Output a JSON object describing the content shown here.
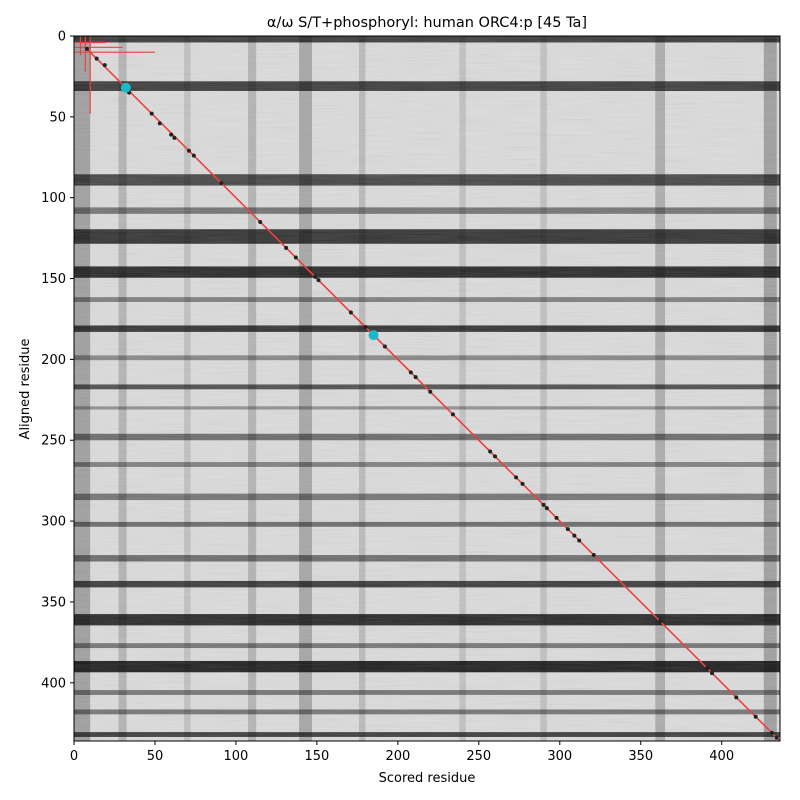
{
  "chart_data": {
    "type": "heatmap",
    "title": "α/ω S/T+phosphoryl: human ORC4:p [45 Ta]",
    "xlabel": "Scored residue",
    "ylabel": "Aligned residue",
    "xlim": [
      0,
      436
    ],
    "ylim": [
      436,
      0
    ],
    "xticks": [
      0,
      50,
      100,
      150,
      200,
      250,
      300,
      350,
      400
    ],
    "yticks": [
      0,
      50,
      100,
      150,
      200,
      250,
      300,
      350,
      400
    ],
    "colormap": "gray",
    "colors": {
      "line": "#e8433f",
      "highlight": "#1ab8c8",
      "point": "#222222"
    },
    "dark_rows": [
      {
        "y": 1,
        "w": 6,
        "d": 0.85
      },
      {
        "y": 31,
        "w": 6,
        "d": 0.85
      },
      {
        "y": 89,
        "w": 7,
        "d": 0.8
      },
      {
        "y": 108,
        "w": 4,
        "d": 0.55
      },
      {
        "y": 124,
        "w": 9,
        "d": 0.9
      },
      {
        "y": 146,
        "w": 7,
        "d": 0.95
      },
      {
        "y": 163,
        "w": 3,
        "d": 0.5
      },
      {
        "y": 181,
        "w": 4,
        "d": 0.9
      },
      {
        "y": 199,
        "w": 3,
        "d": 0.45
      },
      {
        "y": 217,
        "w": 3,
        "d": 0.75
      },
      {
        "y": 230,
        "w": 2,
        "d": 0.4
      },
      {
        "y": 248,
        "w": 4,
        "d": 0.6
      },
      {
        "y": 265,
        "w": 3,
        "d": 0.5
      },
      {
        "y": 285,
        "w": 4,
        "d": 0.55
      },
      {
        "y": 302,
        "w": 3,
        "d": 0.6
      },
      {
        "y": 323,
        "w": 4,
        "d": 0.6
      },
      {
        "y": 339,
        "w": 4,
        "d": 0.85
      },
      {
        "y": 361,
        "w": 7,
        "d": 0.95
      },
      {
        "y": 377,
        "w": 3,
        "d": 0.55
      },
      {
        "y": 390,
        "w": 7,
        "d": 1.0
      },
      {
        "y": 406,
        "w": 3,
        "d": 0.55
      },
      {
        "y": 418,
        "w": 3,
        "d": 0.55
      },
      {
        "y": 432,
        "w": 3,
        "d": 0.85
      }
    ],
    "dark_cols": [
      {
        "x": 5,
        "w": 10,
        "d": 0.45
      },
      {
        "x": 30,
        "w": 5,
        "d": 0.3
      },
      {
        "x": 70,
        "w": 4,
        "d": 0.2
      },
      {
        "x": 110,
        "w": 5,
        "d": 0.3
      },
      {
        "x": 143,
        "w": 8,
        "d": 0.4
      },
      {
        "x": 178,
        "w": 4,
        "d": 0.25
      },
      {
        "x": 240,
        "w": 4,
        "d": 0.2
      },
      {
        "x": 290,
        "w": 4,
        "d": 0.2
      },
      {
        "x": 362,
        "w": 6,
        "d": 0.35
      },
      {
        "x": 430,
        "w": 8,
        "d": 0.45
      }
    ],
    "diagonal": {
      "x": [
        8,
        436
      ],
      "y": [
        8,
        436
      ]
    },
    "corner_lines": [
      {
        "x": [
          0,
          50
        ],
        "y": [
          10,
          10
        ]
      },
      {
        "x": [
          0,
          30
        ],
        "y": [
          7,
          7
        ]
      },
      {
        "x": [
          0,
          20
        ],
        "y": [
          4,
          4
        ]
      },
      {
        "x": [
          10,
          10
        ],
        "y": [
          0,
          48
        ]
      },
      {
        "x": [
          7,
          7
        ],
        "y": [
          0,
          22
        ]
      },
      {
        "x": [
          4,
          4
        ],
        "y": [
          0,
          12
        ]
      }
    ],
    "points": [
      {
        "x": 8,
        "y": 8
      },
      {
        "x": 14,
        "y": 14
      },
      {
        "x": 19,
        "y": 18
      },
      {
        "x": 34,
        "y": 35
      },
      {
        "x": 48,
        "y": 48
      },
      {
        "x": 53,
        "y": 54
      },
      {
        "x": 60,
        "y": 61
      },
      {
        "x": 62,
        "y": 63
      },
      {
        "x": 71,
        "y": 71
      },
      {
        "x": 74,
        "y": 74
      },
      {
        "x": 91,
        "y": 91
      },
      {
        "x": 115,
        "y": 115
      },
      {
        "x": 131,
        "y": 131
      },
      {
        "x": 137,
        "y": 137
      },
      {
        "x": 149,
        "y": 149
      },
      {
        "x": 151,
        "y": 151
      },
      {
        "x": 171,
        "y": 171
      },
      {
        "x": 180,
        "y": 180
      },
      {
        "x": 192,
        "y": 192
      },
      {
        "x": 208,
        "y": 208
      },
      {
        "x": 211,
        "y": 211
      },
      {
        "x": 220,
        "y": 220
      },
      {
        "x": 234,
        "y": 234
      },
      {
        "x": 257,
        "y": 257
      },
      {
        "x": 260,
        "y": 260
      },
      {
        "x": 273,
        "y": 273
      },
      {
        "x": 277,
        "y": 277
      },
      {
        "x": 290,
        "y": 290
      },
      {
        "x": 292,
        "y": 292
      },
      {
        "x": 298,
        "y": 298
      },
      {
        "x": 305,
        "y": 305
      },
      {
        "x": 309,
        "y": 309
      },
      {
        "x": 312,
        "y": 312
      },
      {
        "x": 321,
        "y": 321
      },
      {
        "x": 362,
        "y": 362
      },
      {
        "x": 391,
        "y": 391
      },
      {
        "x": 394,
        "y": 394
      },
      {
        "x": 409,
        "y": 409
      },
      {
        "x": 421,
        "y": 421
      },
      {
        "x": 431,
        "y": 431
      },
      {
        "x": 434,
        "y": 434
      }
    ],
    "highlights": [
      {
        "x": 32,
        "y": 32
      },
      {
        "x": 185,
        "y": 185
      }
    ]
  }
}
